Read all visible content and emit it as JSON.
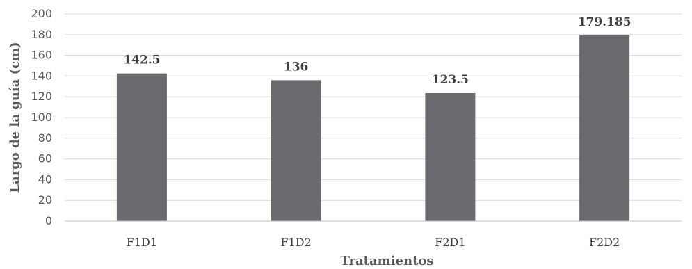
{
  "chart_data": {
    "type": "bar",
    "categories": [
      "F1D1",
      "F1D2",
      "F2D1",
      "F2D2"
    ],
    "values": [
      142.5,
      136,
      123.5,
      179.185
    ],
    "data_labels": [
      "142.5",
      "136",
      "123.5",
      "179.185"
    ],
    "xlabel": "Tratamientos",
    "ylabel": "Largo de la guía (cm)",
    "ylim": [
      0,
      200
    ],
    "yticks": [
      0,
      20,
      40,
      60,
      80,
      100,
      120,
      140,
      160,
      180,
      200
    ],
    "grid": true,
    "legend": "none",
    "bar_color": "#696a6e"
  }
}
